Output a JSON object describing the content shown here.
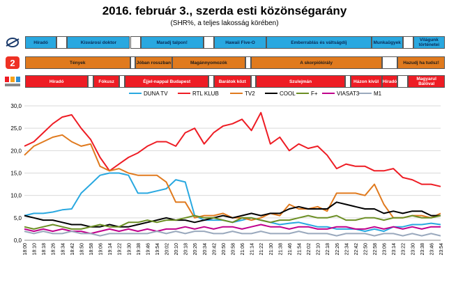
{
  "title": "2016. február 3., szerda esti közönségarány",
  "subtitle": "(SHR%, a teljes lakosság körében)",
  "channels": {
    "duna": {
      "color": "#29a8e0",
      "logo": "duna-logo-icon",
      "segments": [
        {
          "label": "Híradó",
          "start": 0,
          "end": 3
        },
        {
          "label": "",
          "start": 3,
          "end": 4
        },
        {
          "label": "Kisvárosi doktor",
          "start": 4,
          "end": 10
        },
        {
          "label": "",
          "start": 10,
          "end": 11
        },
        {
          "label": "Maradj talpon!",
          "start": 11,
          "end": 17
        },
        {
          "label": "",
          "start": 17,
          "end": 18
        },
        {
          "label": "Hawaii Five-O",
          "start": 18,
          "end": 23
        },
        {
          "label": "Emberrablás és váltságdíj",
          "start": 23,
          "end": 33
        },
        {
          "label": "Munkaügyek",
          "start": 33,
          "end": 36
        },
        {
          "label": "",
          "start": 36,
          "end": 37
        },
        {
          "label": "Világunk történetei",
          "start": 37,
          "end": 40
        }
      ]
    },
    "tv2": {
      "color": "#e07a1e",
      "logo": "tv2-logo-icon",
      "segments": [
        {
          "label": "Tények",
          "start": 0,
          "end": 10
        },
        {
          "label": "",
          "start": 10,
          "end": 10.5
        },
        {
          "label": "Jóban rosszban",
          "start": 10.5,
          "end": 14
        },
        {
          "label": "Magánnyomozók",
          "start": 14,
          "end": 21
        },
        {
          "label": "",
          "start": 21,
          "end": 21.5
        },
        {
          "label": "A skorpiókirály",
          "start": 21.5,
          "end": 34
        },
        {
          "label": "",
          "start": 34,
          "end": 35.5
        },
        {
          "label": "Hazudj ha tudsz!",
          "start": 35.5,
          "end": 40
        }
      ]
    },
    "rtl": {
      "color": "#ee1c24",
      "logo": "rtl-klub-logo-icon",
      "segments": [
        {
          "label": "Híradó",
          "start": 0,
          "end": 6
        },
        {
          "label": "",
          "start": 6,
          "end": 6.5
        },
        {
          "label": "Fókusz",
          "start": 6.5,
          "end": 9
        },
        {
          "label": "",
          "start": 9,
          "end": 9.5
        },
        {
          "label": "Éjjel-nappal Budapest",
          "start": 9.5,
          "end": 17.5
        },
        {
          "label": "",
          "start": 17.5,
          "end": 18
        },
        {
          "label": "Barátok közt",
          "start": 18,
          "end": 21.5
        },
        {
          "label": "",
          "start": 21.5,
          "end": 22
        },
        {
          "label": "Szulejmán",
          "start": 22,
          "end": 30.5
        },
        {
          "label": "",
          "start": 30.5,
          "end": 31
        },
        {
          "label": "Házon kívül",
          "start": 31,
          "end": 34
        },
        {
          "label": "Híradó",
          "start": 34,
          "end": 35.5
        },
        {
          "label": "",
          "start": 35.5,
          "end": 36.5
        },
        {
          "label": "Magyarul Bálóval",
          "start": 36.5,
          "end": 40
        }
      ]
    }
  },
  "chart_data": {
    "type": "line",
    "ylim": [
      0,
      30
    ],
    "yticks": [
      "0,0",
      "5,0",
      "10,0",
      "15,0",
      "20,0",
      "25,0",
      "30,0"
    ],
    "grid": true,
    "legend_position": "top",
    "x_labels": [
      "18:00",
      "18:10",
      "18:18",
      "18:26",
      "18:34",
      "18:42",
      "18:50",
      "18:58",
      "19:06",
      "19:14",
      "19:22",
      "19:30",
      "19:38",
      "19:46",
      "19:54",
      "20:02",
      "20:10",
      "20:18",
      "20:26",
      "20:34",
      "20:42",
      "20:50",
      "20:58",
      "21:06",
      "21:14",
      "21:22",
      "21:30",
      "21:38",
      "21:46",
      "21:54",
      "22:02",
      "22:10",
      "22:18",
      "22:26",
      "22:34",
      "22:42",
      "22:50",
      "22:58",
      "23:06",
      "23:14",
      "23:22",
      "23:30",
      "23:38",
      "23:46",
      "23:54"
    ],
    "series": [
      {
        "name": "DUNA TV",
        "color": "#29a8e0",
        "values": [
          5.5,
          6.0,
          6.0,
          6.3,
          6.8,
          7.0,
          10.5,
          12.5,
          14.5,
          15.0,
          15.0,
          14.5,
          10.5,
          10.5,
          11.0,
          11.5,
          13.5,
          13.0,
          5.5,
          4.5,
          4.5,
          4.5,
          4.0,
          4.5,
          5.0,
          4.5,
          4.0,
          3.5,
          3.8,
          4.0,
          3.5,
          3.0,
          3.0,
          2.5,
          2.5,
          2.5,
          2.0,
          2.5,
          2.0,
          3.0,
          3.0,
          3.5,
          3.5,
          3.8,
          3.5
        ]
      },
      {
        "name": "RTL KLUB",
        "color": "#ee1c24",
        "values": [
          21.0,
          22.0,
          24.0,
          26.0,
          27.5,
          28.0,
          25.0,
          22.5,
          18.5,
          15.5,
          17.0,
          18.5,
          19.5,
          21.0,
          22.0,
          22.0,
          21.0,
          24.0,
          25.0,
          21.5,
          24.0,
          25.5,
          26.0,
          27.0,
          24.5,
          28.5,
          21.5,
          23.0,
          20.0,
          21.5,
          20.5,
          21.0,
          19.0,
          16.0,
          17.0,
          16.5,
          16.5,
          15.5,
          15.5,
          16.0,
          14.0,
          13.5,
          12.5,
          12.5,
          12.0
        ]
      },
      {
        "name": "TV2",
        "color": "#e07a1e",
        "values": [
          19.0,
          21.0,
          22.0,
          23.0,
          23.5,
          22.0,
          21.0,
          21.5,
          16.5,
          15.5,
          16.0,
          15.0,
          14.5,
          14.5,
          14.5,
          13.0,
          8.5,
          8.5,
          5.0,
          5.5,
          5.5,
          6.0,
          5.0,
          5.0,
          4.5,
          5.0,
          6.0,
          5.5,
          8.0,
          7.0,
          7.0,
          7.5,
          6.5,
          10.5,
          10.5,
          10.5,
          10.0,
          12.5,
          8.0,
          5.0,
          5.0,
          5.5,
          5.5,
          5.0,
          6.0
        ]
      },
      {
        "name": "COOL",
        "color": "#000000",
        "values": [
          5.5,
          5.0,
          4.5,
          4.5,
          4.0,
          3.5,
          3.5,
          3.0,
          3.0,
          3.5,
          3.0,
          3.0,
          3.5,
          4.0,
          4.5,
          5.0,
          4.5,
          4.5,
          4.0,
          4.5,
          5.0,
          5.5,
          5.0,
          5.5,
          6.0,
          5.5,
          6.0,
          6.0,
          7.0,
          7.5,
          7.0,
          7.0,
          7.0,
          8.5,
          8.0,
          7.5,
          7.0,
          7.0,
          6.0,
          6.5,
          6.0,
          6.5,
          6.5,
          5.5,
          5.5
        ]
      },
      {
        "name": "F+",
        "color": "#6b8e23",
        "values": [
          3.0,
          2.5,
          3.0,
          3.5,
          3.0,
          2.5,
          2.5,
          3.0,
          3.5,
          3.0,
          3.0,
          4.0,
          4.0,
          4.5,
          4.0,
          4.5,
          4.5,
          5.0,
          5.5,
          5.0,
          5.0,
          4.5,
          4.0,
          5.0,
          5.0,
          4.5,
          4.0,
          4.5,
          4.5,
          5.0,
          5.5,
          5.0,
          5.0,
          5.5,
          4.5,
          4.5,
          5.0,
          5.0,
          4.5,
          5.0,
          5.0,
          5.5,
          5.0,
          5.0,
          5.5
        ]
      },
      {
        "name": "VIASAT3",
        "color": "#c0008c",
        "values": [
          2.5,
          2.0,
          2.5,
          2.0,
          2.5,
          2.0,
          2.0,
          1.5,
          2.0,
          2.5,
          2.0,
          2.5,
          2.0,
          2.5,
          2.0,
          2.5,
          2.5,
          3.0,
          2.5,
          3.0,
          2.5,
          3.0,
          3.0,
          2.5,
          3.0,
          3.5,
          3.0,
          3.0,
          2.5,
          3.0,
          3.0,
          2.5,
          2.5,
          3.0,
          3.0,
          2.5,
          2.5,
          3.0,
          2.5,
          3.0,
          2.5,
          3.0,
          2.5,
          3.0,
          3.0
        ]
      },
      {
        "name": "M1",
        "color": "#9aa9bd",
        "values": [
          2.0,
          1.5,
          2.0,
          1.5,
          1.5,
          2.0,
          1.5,
          1.5,
          1.0,
          1.5,
          1.5,
          1.5,
          1.5,
          1.5,
          2.0,
          1.5,
          2.0,
          1.5,
          2.0,
          2.0,
          1.5,
          1.5,
          2.0,
          1.5,
          1.5,
          2.0,
          1.5,
          1.5,
          1.5,
          2.0,
          1.5,
          1.5,
          1.5,
          1.0,
          1.5,
          1.5,
          1.5,
          1.0,
          1.5,
          1.5,
          1.0,
          1.5,
          1.0,
          1.5,
          1.0
        ]
      }
    ]
  }
}
